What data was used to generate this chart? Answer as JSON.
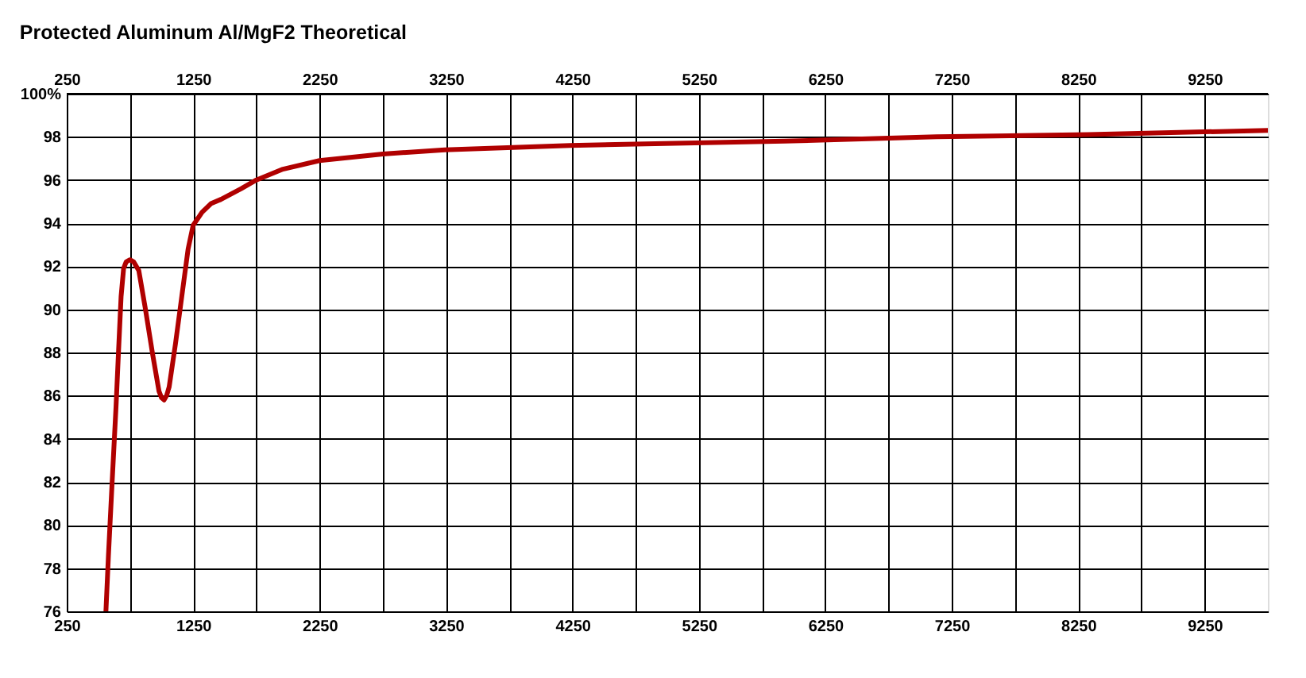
{
  "chart_data": {
    "type": "line",
    "title": "Protected Aluminum Al/MgF2 Theoretical",
    "x": [
      560,
      580,
      610,
      640,
      660,
      680,
      700,
      720,
      750,
      780,
      820,
      870,
      930,
      980,
      1000,
      1020,
      1040,
      1060,
      1110,
      1160,
      1210,
      1250,
      1320,
      1390,
      1470,
      1630,
      1750,
      1960,
      2250,
      2750,
      3240,
      4230,
      5060,
      5930,
      7130,
      8330,
      9750
    ],
    "series": [
      {
        "color": "#b00000",
        "values": [
          76.0,
          78.6,
          82.1,
          85.5,
          88.1,
          90.6,
          91.9,
          92.2,
          92.3,
          92.2,
          91.8,
          90.1,
          87.9,
          86.2,
          85.9,
          85.8,
          86.0,
          86.4,
          88.4,
          90.6,
          92.8,
          93.9,
          94.5,
          94.9,
          95.1,
          95.6,
          96.0,
          96.5,
          96.9,
          97.2,
          97.4,
          97.6,
          97.7,
          97.8,
          98.0,
          98.1,
          98.3
        ]
      }
    ],
    "xlim": [
      250,
      9750
    ],
    "xticks": [
      250,
      {
        "value": 750,
        "label": null
      },
      1250,
      {
        "value": 1750,
        "label": null
      },
      2250,
      {
        "value": 2750,
        "label": null
      },
      3250,
      {
        "value": 3750,
        "label": null
      },
      4250,
      {
        "value": 4750,
        "label": null
      },
      5250,
      {
        "value": 5750,
        "label": null
      },
      6250,
      {
        "value": 6750,
        "label": null
      },
      7250,
      {
        "value": 7750,
        "label": null
      },
      8250,
      {
        "value": 8750,
        "label": null
      },
      9250
    ],
    "x2lim": [
      250,
      9750
    ],
    "x2ticks": [
      250,
      {
        "value": 750,
        "label": null
      },
      1250,
      {
        "value": 1750,
        "label": null
      },
      2250,
      {
        "value": 2750,
        "label": null
      },
      3250,
      {
        "value": 3750,
        "label": null
      },
      4250,
      {
        "value": 4750,
        "label": null
      },
      5250,
      {
        "value": 5750,
        "label": null
      },
      6250,
      {
        "value": 6750,
        "label": null
      },
      7250,
      {
        "value": 7750,
        "label": null
      },
      8250,
      {
        "value": 8750,
        "label": null
      },
      9250
    ],
    "ylim": [
      76,
      100
    ],
    "yticks": [
      76,
      78,
      80,
      82,
      84,
      86,
      88,
      90,
      92,
      94,
      96,
      98,
      {
        "value": 100,
        "label": "100%"
      }
    ],
    "grid": true,
    "marker": "none",
    "line_style": "solid"
  }
}
